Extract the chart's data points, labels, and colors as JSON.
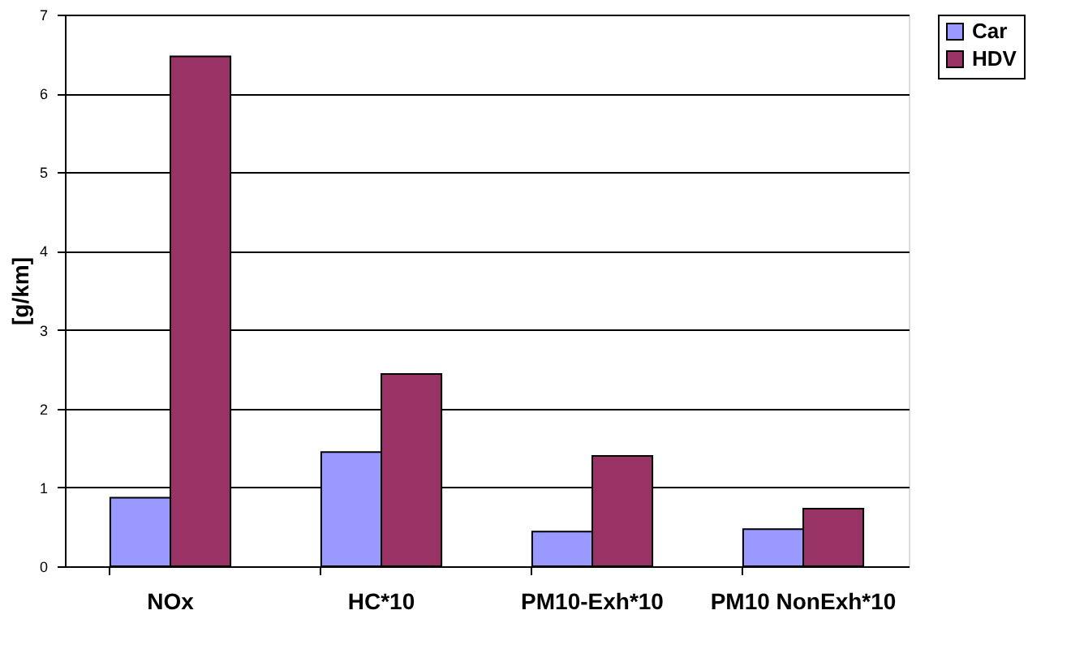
{
  "chart_data": {
    "type": "bar",
    "ylabel": "[g/km]",
    "categories": [
      "NOx",
      "HC*10",
      "PM10-Exh*10",
      "PM10 NonExh*10"
    ],
    "series": [
      {
        "name": "Car",
        "color": "#9999ff",
        "values": [
          0.87,
          1.45,
          0.44,
          0.47
        ]
      },
      {
        "name": "HDV",
        "color": "#993366",
        "values": [
          6.47,
          2.44,
          1.4,
          0.73
        ]
      }
    ],
    "ylim": [
      0,
      7
    ],
    "yticks": [
      0,
      1,
      2,
      3,
      4,
      5,
      6,
      7
    ],
    "grid": "y",
    "legend": "right"
  }
}
